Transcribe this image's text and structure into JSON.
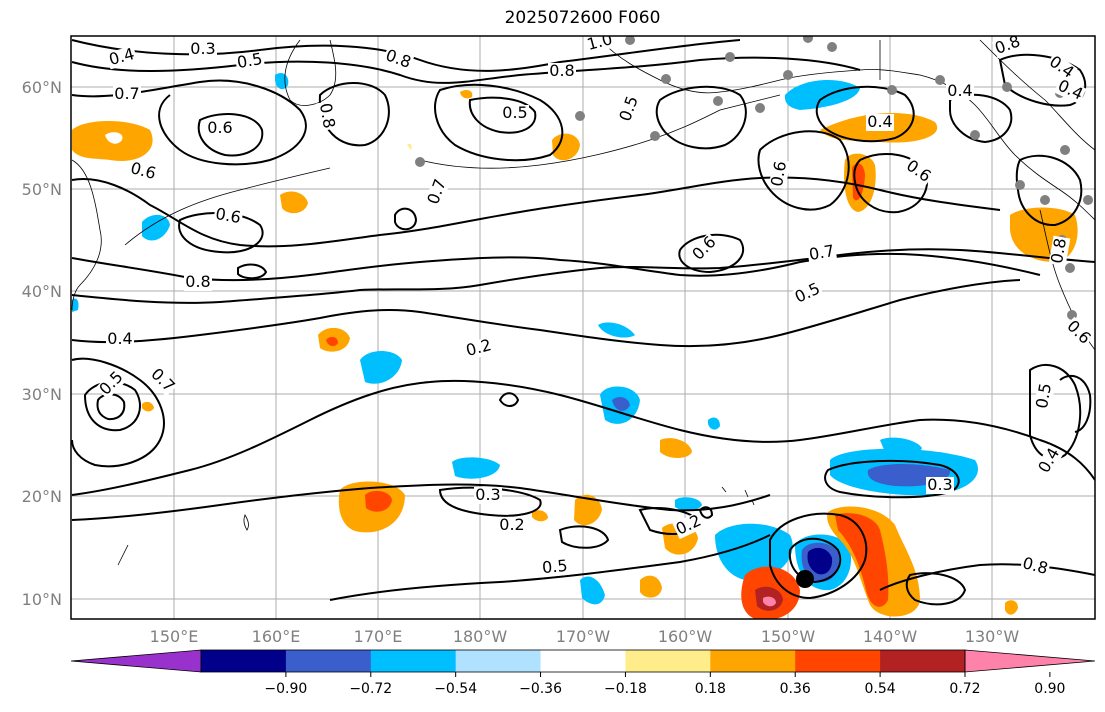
{
  "title": "2025072600 F060",
  "latitude_labels": [
    "10°N",
    "20°N",
    "30°N",
    "40°N",
    "50°N",
    "60°N"
  ],
  "longitude_labels": [
    "150°E",
    "160°E",
    "170°E",
    "180°W",
    "170°W",
    "160°W",
    "150°W",
    "140°W",
    "130°W"
  ],
  "colorbar": {
    "ticks": [
      "−0.90",
      "−0.72",
      "−0.54",
      "−0.36",
      "−0.18",
      "0.18",
      "0.36",
      "0.54",
      "0.72",
      "0.90"
    ],
    "colors": [
      "#9932cc",
      "#00008b",
      "#3a5fcd",
      "#00bfff",
      "#b0e2ff",
      "#ffffff",
      "#ffec8b",
      "#ffa500",
      "#ff4500",
      "#b22222",
      "#ff82ab"
    ]
  },
  "contour_labels": [
    "0.3",
    "0.4",
    "0.5",
    "0.8",
    "1.0",
    "0.7",
    "0.6",
    "0.5",
    "0.8",
    "0.6",
    "0.8",
    "0.7",
    "0.6",
    "0.4",
    "0.5",
    "0.7",
    "0.8",
    "0.6",
    "0.5",
    "0.4",
    "0.6",
    "0.7",
    "0.6",
    "0.5",
    "0.8",
    "0.4",
    "0.4",
    "0.2",
    "0.3",
    "0.2",
    "0.2",
    "0.5",
    "0.3",
    "0.8",
    "0.6",
    "0.5",
    "0.4",
    "0.8",
    "0.4"
  ]
}
